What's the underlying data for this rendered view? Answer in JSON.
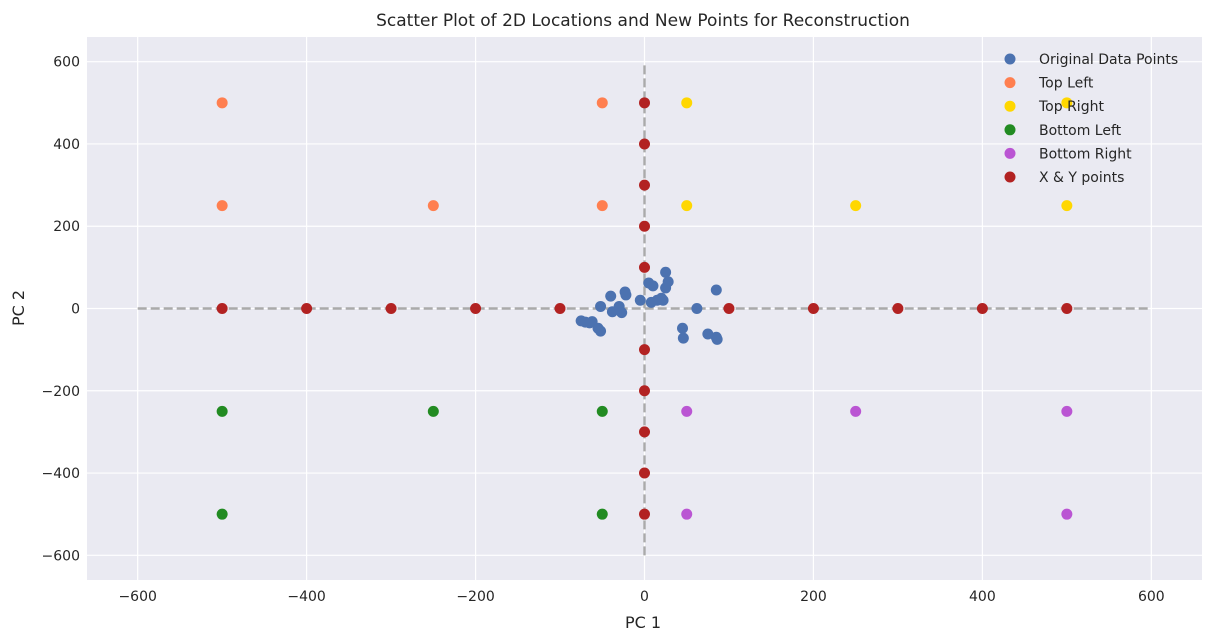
{
  "chart_data": {
    "type": "scatter",
    "title": "Scatter Plot of 2D Locations and New Points for Reconstruction",
    "xlabel": "PC 1",
    "ylabel": "PC 2",
    "xlim": [
      -660,
      660
    ],
    "ylim": [
      -660,
      660
    ],
    "xticks": [
      -600,
      -400,
      -200,
      0,
      200,
      400,
      600
    ],
    "yticks": [
      -600,
      -400,
      -200,
      0,
      200,
      400,
      600
    ],
    "xtick_labels": [
      "−600",
      "−400",
      "−200",
      "0",
      "200",
      "400",
      "600"
    ],
    "ytick_labels": [
      "−600",
      "−400",
      "−200",
      "0",
      "200",
      "400",
      "600"
    ],
    "grid": true,
    "legend_position": "top-right",
    "reference_lines": [
      {
        "orientation": "horizontal",
        "y": 0,
        "x_from": -600,
        "x_to": 600,
        "style": "dashed",
        "color": "#aaaaaa"
      },
      {
        "orientation": "vertical",
        "x": 0,
        "y_from": -600,
        "y_to": 600,
        "style": "dashed",
        "color": "#aaaaaa"
      }
    ],
    "series": [
      {
        "name": "Original Data Points",
        "color": "#4c72b0",
        "points": [
          [
            -75,
            -30
          ],
          [
            -70,
            -33
          ],
          [
            -65,
            -35
          ],
          [
            -62,
            -32
          ],
          [
            -55,
            -48
          ],
          [
            -52,
            -55
          ],
          [
            -52,
            5
          ],
          [
            -40,
            30
          ],
          [
            -38,
            -8
          ],
          [
            -30,
            5
          ],
          [
            -27,
            -10
          ],
          [
            -23,
            40
          ],
          [
            -22,
            33
          ],
          [
            -5,
            20
          ],
          [
            5,
            62
          ],
          [
            8,
            15
          ],
          [
            10,
            55
          ],
          [
            15,
            20
          ],
          [
            20,
            25
          ],
          [
            22,
            20
          ],
          [
            25,
            50
          ],
          [
            25,
            88
          ],
          [
            28,
            65
          ],
          [
            45,
            -48
          ],
          [
            46,
            -72
          ],
          [
            62,
            0
          ],
          [
            75,
            -62
          ],
          [
            85,
            45
          ],
          [
            85,
            -70
          ],
          [
            86,
            -75
          ]
        ]
      },
      {
        "name": "Top Left",
        "color": "#ff7f50",
        "points": [
          [
            -500,
            500
          ],
          [
            -500,
            250
          ],
          [
            -250,
            250
          ],
          [
            -50,
            500
          ],
          [
            -50,
            250
          ]
        ]
      },
      {
        "name": "Top Right",
        "color": "#ffd700",
        "points": [
          [
            50,
            500
          ],
          [
            50,
            250
          ],
          [
            250,
            250
          ],
          [
            500,
            500
          ],
          [
            500,
            250
          ]
        ]
      },
      {
        "name": "Bottom Left",
        "color": "#228b22",
        "points": [
          [
            -500,
            -250
          ],
          [
            -500,
            -500
          ],
          [
            -250,
            -250
          ],
          [
            -50,
            -250
          ],
          [
            -50,
            -500
          ]
        ]
      },
      {
        "name": "Bottom Right",
        "color": "#ba55d3",
        "points": [
          [
            50,
            -250
          ],
          [
            50,
            -500
          ],
          [
            250,
            -250
          ],
          [
            500,
            -250
          ],
          [
            500,
            -500
          ]
        ]
      },
      {
        "name": "X & Y points",
        "color": "#b22222",
        "points": [
          [
            -500,
            0
          ],
          [
            -400,
            0
          ],
          [
            -300,
            0
          ],
          [
            -200,
            0
          ],
          [
            -100,
            0
          ],
          [
            100,
            0
          ],
          [
            200,
            0
          ],
          [
            300,
            0
          ],
          [
            400,
            0
          ],
          [
            500,
            0
          ],
          [
            0,
            500
          ],
          [
            0,
            400
          ],
          [
            0,
            300
          ],
          [
            0,
            200
          ],
          [
            0,
            100
          ],
          [
            0,
            -100
          ],
          [
            0,
            -200
          ],
          [
            0,
            -300
          ],
          [
            0,
            -400
          ],
          [
            0,
            -500
          ]
        ]
      }
    ]
  }
}
